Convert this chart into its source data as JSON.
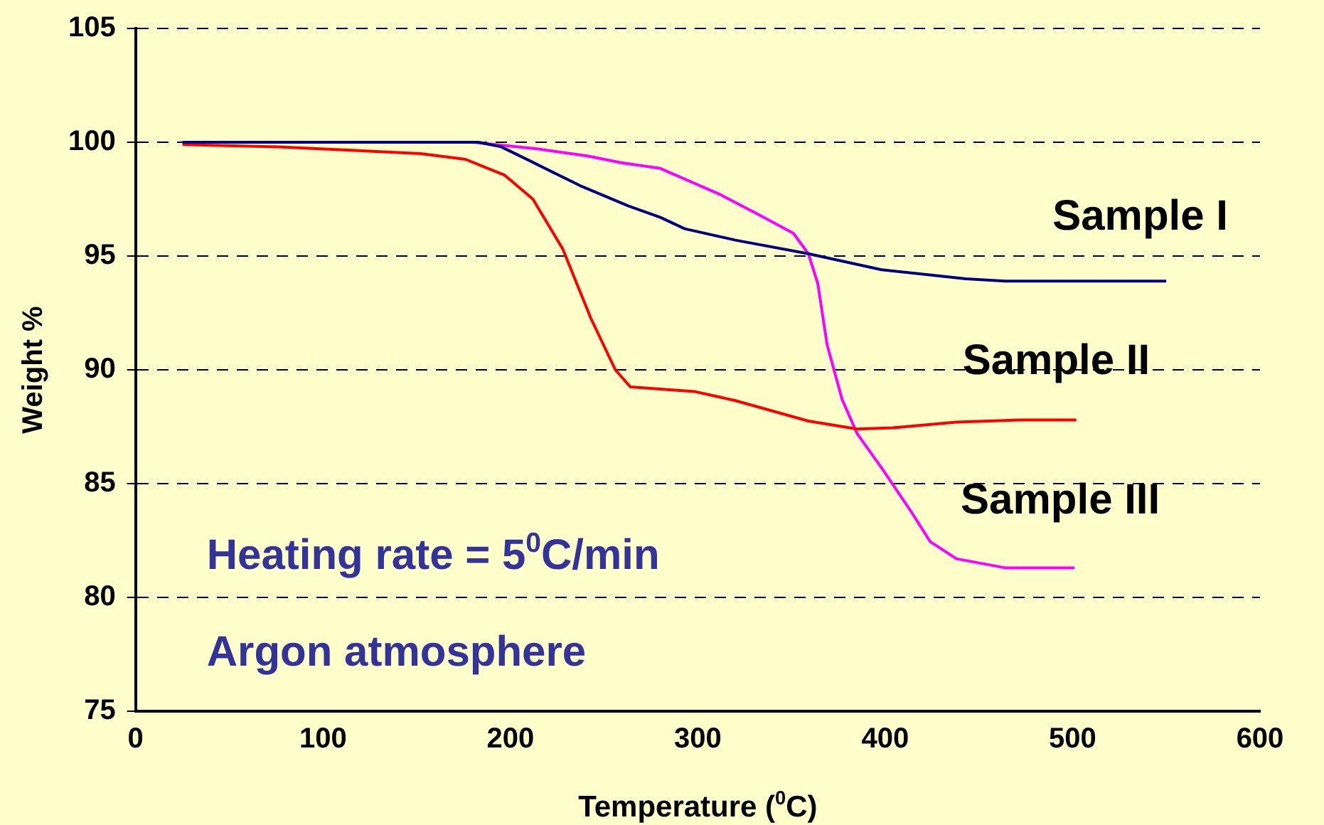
{
  "chart_data": {
    "type": "line",
    "xlabel": "Temperature ($^{0}$C)",
    "ylabel": "Weight %",
    "xlim": [
      0,
      600
    ],
    "xticks": [
      0,
      100,
      200,
      300,
      400,
      500,
      600
    ],
    "ylim": [
      75,
      105
    ],
    "yticks": [
      75,
      80,
      85,
      90,
      95,
      100,
      105
    ],
    "grid": "y",
    "legend": false,
    "line_style": "solid",
    "annotations": [
      "Heating rate = 5$^{0}$C/min",
      "Argon atmosphere"
    ],
    "series": [
      {
        "name": "Sample I",
        "color": "#000080",
        "x": [
          25,
          120,
          183,
          195,
          210,
          237,
          263,
          280,
          293,
          320,
          359,
          398,
          443,
          464,
          550
        ],
        "values": [
          100,
          100,
          100,
          99.8,
          99.2,
          98.1,
          97.2,
          96.7,
          96.2,
          95.7,
          95.1,
          94.4,
          94,
          93.9,
          93.9
        ]
      },
      {
        "name": "Sample II",
        "color": "#ff0000",
        "x": [
          25,
          76,
          152,
          176,
          197,
          212,
          228,
          243,
          256,
          264,
          298,
          320,
          359,
          385,
          404,
          438,
          472,
          502
        ],
        "values": [
          99.9,
          99.8,
          99.5,
          99.25,
          98.55,
          97.5,
          95.3,
          92.25,
          90,
          89.25,
          89.05,
          88.65,
          87.75,
          87.4,
          87.45,
          87.7,
          87.8,
          87.8
        ]
      },
      {
        "name": "Sample III",
        "color": "#ff00ff",
        "x": [
          25,
          180,
          215,
          241,
          259,
          280,
          312,
          333,
          351,
          359,
          364,
          369,
          377,
          385,
          398,
          414,
          424,
          438,
          464,
          501
        ],
        "values": [
          100,
          100,
          99.7,
          99.4,
          99.1,
          98.85,
          97.7,
          96.8,
          96,
          95.1,
          93.8,
          91.1,
          88.7,
          87.2,
          85.7,
          83.75,
          82.45,
          81.7,
          81.3,
          81.3
        ]
      }
    ]
  }
}
